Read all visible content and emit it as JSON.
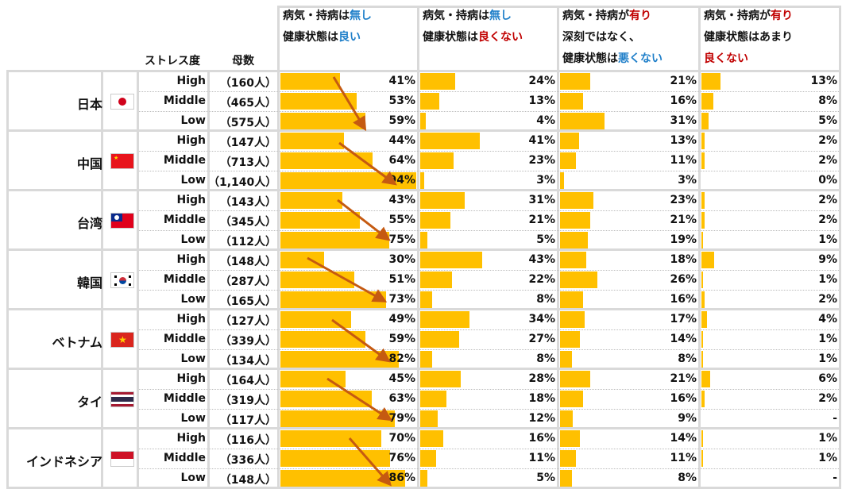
{
  "headers": {
    "stress": "ストレス度",
    "count": "母数",
    "columns": [
      {
        "lines": [
          [
            {
              "t": "病気・持病は",
              "c": ""
            },
            {
              "t": "無し",
              "c": "blue"
            }
          ],
          [
            {
              "t": "健康状態は",
              "c": ""
            },
            {
              "t": "良い",
              "c": "blue"
            }
          ]
        ]
      },
      {
        "lines": [
          [
            {
              "t": "病気・持病は",
              "c": ""
            },
            {
              "t": "無し",
              "c": "blue"
            }
          ],
          [
            {
              "t": "健康状態は",
              "c": ""
            },
            {
              "t": "良くない",
              "c": "red"
            }
          ]
        ]
      },
      {
        "lines": [
          [
            {
              "t": "病気・持病が",
              "c": ""
            },
            {
              "t": "有り",
              "c": "red"
            }
          ],
          [
            {
              "t": "深刻ではなく、",
              "c": ""
            }
          ],
          [
            {
              "t": "健康状態は",
              "c": ""
            },
            {
              "t": "悪くない",
              "c": "blue"
            }
          ]
        ]
      },
      {
        "lines": [
          [
            {
              "t": "病気・持病が",
              "c": ""
            },
            {
              "t": "有り",
              "c": "red"
            }
          ],
          [
            {
              "t": "健康状態はあまり",
              "c": ""
            }
          ],
          [
            {
              "t": "良くない",
              "c": "red"
            }
          ]
        ]
      }
    ]
  },
  "colors": {
    "bar": "#ffc000",
    "arrow": "#c55a11",
    "highlight_blue": "#1f7fc9",
    "highlight_red": "#c00000"
  },
  "chart_data": {
    "type": "table",
    "levels": [
      "High",
      "Middle",
      "Low"
    ],
    "groups": [
      {
        "country": "日本",
        "flag": "japan",
        "rows": [
          {
            "level": "High",
            "n": "（160人）",
            "values": [
              "41%",
              "24%",
              "21%",
              "13%"
            ]
          },
          {
            "level": "Middle",
            "n": "（465人）",
            "values": [
              "53%",
              "13%",
              "16%",
              "8%"
            ]
          },
          {
            "level": "Low",
            "n": "（575人）",
            "values": [
              "59%",
              "4%",
              "31%",
              "5%"
            ]
          }
        ]
      },
      {
        "country": "中国",
        "flag": "china",
        "rows": [
          {
            "level": "High",
            "n": "（147人）",
            "values": [
              "44%",
              "41%",
              "13%",
              "2%"
            ]
          },
          {
            "level": "Middle",
            "n": "（713人）",
            "values": [
              "64%",
              "23%",
              "11%",
              "2%"
            ]
          },
          {
            "level": "Low",
            "n": "（1,140人）",
            "values": [
              "94%",
              "3%",
              "3%",
              "0%"
            ]
          }
        ]
      },
      {
        "country": "台湾",
        "flag": "taiwan",
        "rows": [
          {
            "level": "High",
            "n": "（143人）",
            "values": [
              "43%",
              "31%",
              "23%",
              "2%"
            ]
          },
          {
            "level": "Middle",
            "n": "（345人）",
            "values": [
              "55%",
              "21%",
              "21%",
              "2%"
            ]
          },
          {
            "level": "Low",
            "n": "（112人）",
            "values": [
              "75%",
              "5%",
              "19%",
              "1%"
            ]
          }
        ]
      },
      {
        "country": "韓国",
        "flag": "korea",
        "rows": [
          {
            "level": "High",
            "n": "（148人）",
            "values": [
              "30%",
              "43%",
              "18%",
              "9%"
            ]
          },
          {
            "level": "Middle",
            "n": "（287人）",
            "values": [
              "51%",
              "22%",
              "26%",
              "1%"
            ]
          },
          {
            "level": "Low",
            "n": "（165人）",
            "values": [
              "73%",
              "8%",
              "16%",
              "2%"
            ]
          }
        ]
      },
      {
        "country": "ベトナム",
        "flag": "vietnam",
        "rows": [
          {
            "level": "High",
            "n": "（127人）",
            "values": [
              "49%",
              "34%",
              "17%",
              "4%"
            ]
          },
          {
            "level": "Middle",
            "n": "（339人）",
            "values": [
              "59%",
              "27%",
              "14%",
              "1%"
            ]
          },
          {
            "level": "Low",
            "n": "（134人）",
            "values": [
              "82%",
              "8%",
              "8%",
              "1%"
            ]
          }
        ]
      },
      {
        "country": "タイ",
        "flag": "thailand",
        "rows": [
          {
            "level": "High",
            "n": "（164人）",
            "values": [
              "45%",
              "28%",
              "21%",
              "6%"
            ]
          },
          {
            "level": "Middle",
            "n": "（319人）",
            "values": [
              "63%",
              "18%",
              "16%",
              "2%"
            ]
          },
          {
            "level": "Low",
            "n": "（117人）",
            "values": [
              "79%",
              "12%",
              "9%",
              "-"
            ]
          }
        ]
      },
      {
        "country": "インドネシア",
        "flag": "indonesia",
        "rows": [
          {
            "level": "High",
            "n": "（116人）",
            "values": [
              "70%",
              "16%",
              "14%",
              "1%"
            ]
          },
          {
            "level": "Middle",
            "n": "（336人）",
            "values": [
              "76%",
              "11%",
              "11%",
              "1%"
            ]
          },
          {
            "level": "Low",
            "n": "（148人）",
            "values": [
              "86%",
              "5%",
              "8%",
              "-"
            ]
          }
        ]
      }
    ]
  }
}
